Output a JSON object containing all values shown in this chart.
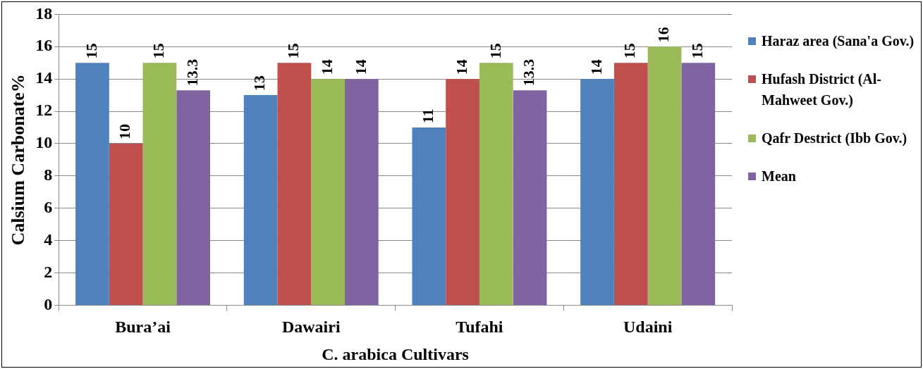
{
  "chart_data": {
    "type": "bar",
    "xlabel": "C. arabica Cultivars",
    "ylabel": "Calsium Carbonate%",
    "categories": [
      "Bura’ai",
      "Dawairi",
      "Tufahi",
      "Udaini"
    ],
    "series": [
      {
        "name": "Haraz area (Sana'a Gov.)",
        "color": "#4f81bd",
        "values": [
          15,
          13,
          11,
          14
        ]
      },
      {
        "name": "Hufash District (Al-Mahweet Gov.)",
        "color": "#c0504d",
        "values": [
          10,
          15,
          14,
          15
        ]
      },
      {
        "name": "Qafr Destrict (Ibb Gov.)",
        "color": "#9bbb59",
        "values": [
          15,
          14,
          15,
          16
        ]
      },
      {
        "name": "Mean",
        "color": "#8064a2",
        "values": [
          13.3,
          14,
          13.3,
          15
        ]
      }
    ],
    "ylim": [
      0,
      18
    ],
    "yticks": [
      0,
      2,
      4,
      6,
      8,
      10,
      12,
      14,
      16,
      18
    ],
    "grid": "y",
    "legend": "right",
    "data_labels": true
  }
}
